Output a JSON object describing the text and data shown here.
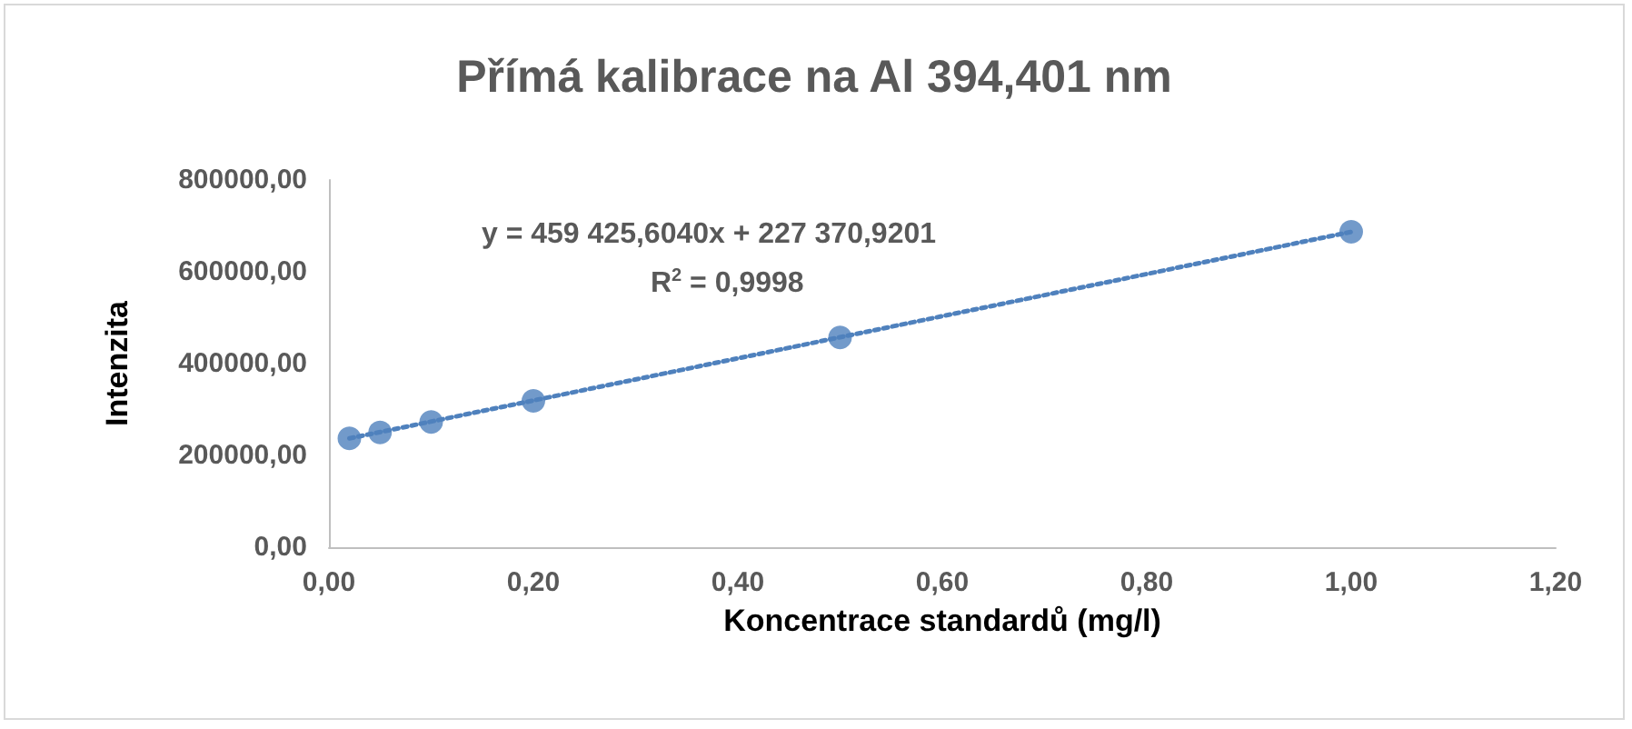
{
  "chart_data": {
    "type": "scatter",
    "title": "Přímá kalibrace na Al 394,401 nm",
    "xlabel": "Koncentrace standardů (mg/l)",
    "ylabel": "Intenzita",
    "annotations": [
      "y = 459 425,6040x + 227 370,9201",
      "R$^{2}$ = 0,9998"
    ],
    "series": [
      {
        "color": "#4f81bd",
        "marker": "circle",
        "x": [
          0.02,
          0.05,
          0.1,
          0.2,
          0.5,
          1.0
        ],
        "values": [
          237000,
          250000,
          273000,
          319000,
          457000,
          687000
        ]
      },
      {
        "type": "line",
        "color": "#4f81bd",
        "marker": "none",
        "line_style": "dotted",
        "x": [
          0.02,
          1.0
        ],
        "values": [
          237000,
          687000
        ]
      }
    ],
    "xlim": [
      0,
      1.2
    ],
    "xticks": [
      {
        "value": 0,
        "label": "0,00"
      },
      {
        "value": 0.2,
        "label": "0,20"
      },
      {
        "value": 0.4,
        "label": "0,40"
      },
      {
        "value": 0.6,
        "label": "0,60"
      },
      {
        "value": 0.8,
        "label": "0,80"
      },
      {
        "value": 1.0,
        "label": "1,00"
      },
      {
        "value": 1.2,
        "label": "1,20"
      }
    ],
    "ylim": [
      0,
      800000
    ],
    "yticks": [
      {
        "value": 0,
        "label": "0,00"
      },
      {
        "value": 200000,
        "label": "200000,00"
      },
      {
        "value": 400000,
        "label": "400000,00"
      },
      {
        "value": 600000,
        "label": "600000,00"
      },
      {
        "value": 800000,
        "label": "800000,00"
      }
    ],
    "grid": false
  }
}
